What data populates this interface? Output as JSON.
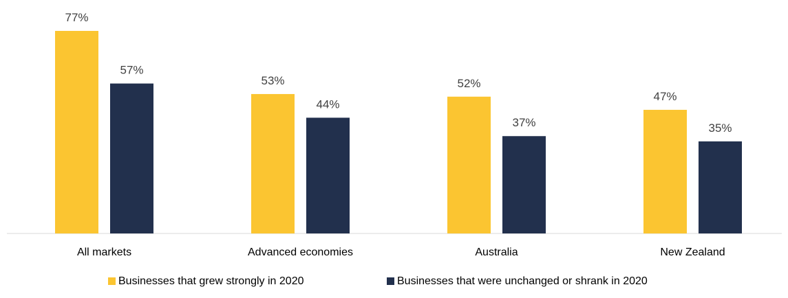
{
  "chart_data": {
    "type": "bar",
    "categories": [
      "All markets",
      "Advanced economies",
      "Australia",
      "New Zealand"
    ],
    "series": [
      {
        "name": "Businesses that grew strongly in 2020",
        "color": "#FBC531",
        "values": [
          77,
          53,
          52,
          47
        ],
        "labels": [
          "77%",
          "53%",
          "52%",
          "47%"
        ]
      },
      {
        "name": "Businesses that were unchanged or shrank in 2020",
        "color": "#22304D",
        "values": [
          57,
          44,
          37,
          35
        ],
        "labels": [
          "57%",
          "44%",
          "37%",
          "35%"
        ]
      }
    ],
    "ylim": [
      0,
      77
    ],
    "grid": false,
    "legend_position": "bottom"
  }
}
